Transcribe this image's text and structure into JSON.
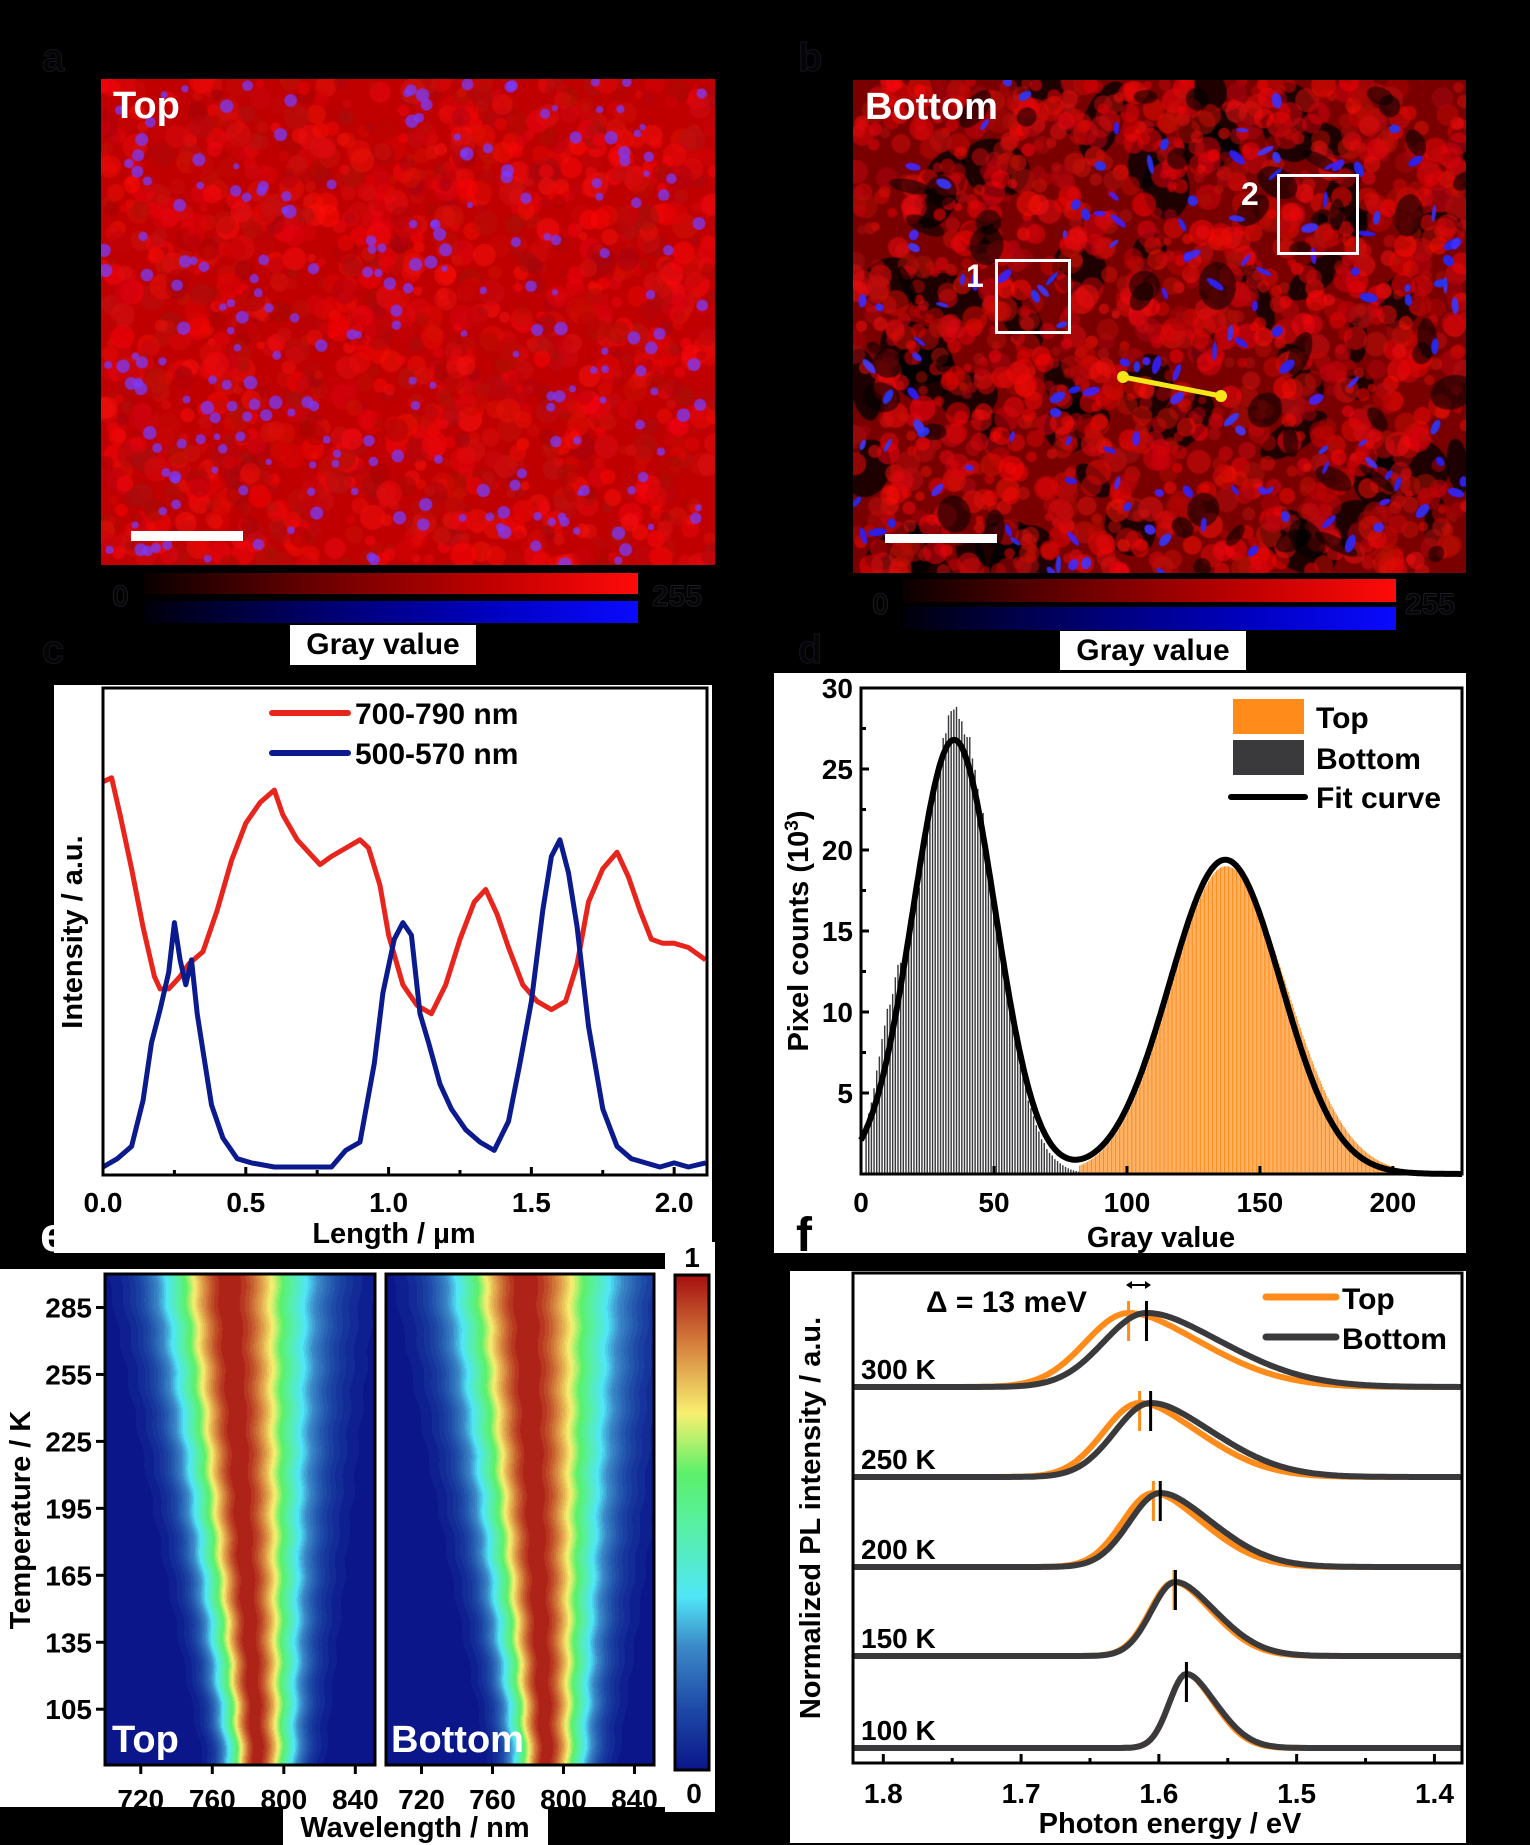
{
  "panels": {
    "a": {
      "letter": "a",
      "image_label": "Top",
      "colorbar": {
        "min_label": "0",
        "max_label": "255",
        "title": "Gray value"
      }
    },
    "b": {
      "letter": "b",
      "image_label": "Bottom",
      "regions": [
        {
          "label": "1"
        },
        {
          "label": "2"
        }
      ],
      "colorbar": {
        "min_label": "0",
        "max_label": "255",
        "title": "Gray value"
      }
    },
    "c": {
      "letter": "c"
    },
    "d": {
      "letter": "d"
    },
    "e": {
      "letter": "e",
      "sub_labels": [
        "Top",
        "Bottom"
      ],
      "colorbar": {
        "max_label": "1",
        "min_label": "0"
      }
    },
    "f": {
      "letter": "f"
    }
  },
  "colors": {
    "red_channel": "#ff0000",
    "blue_channel": "#1010ff",
    "line_red": "#e8251c",
    "line_blue": "#0b1a8c",
    "top_orange": "#ff8c1a",
    "bottom_gray": "#3a3a3d",
    "fit_black": "#000000",
    "scan_line_yellow": "#f5e61a"
  },
  "chart_data": [
    {
      "id": "c",
      "type": "line",
      "title": "",
      "xlabel": "Length / µm",
      "ylabel": "Intensity / a.u.",
      "xlim": [
        0,
        2.115
      ],
      "ylim": [
        0,
        1
      ],
      "xticks": [
        "0.0",
        "0.5",
        "1.0",
        "1.5",
        "2.0"
      ],
      "xtick_values": [
        0,
        0.5,
        1.0,
        1.5,
        2.0
      ],
      "legend_position": "top-center",
      "series": [
        {
          "name": "700-790 nm",
          "color": "#e8251c",
          "x": [
            0.0,
            0.03,
            0.06,
            0.1,
            0.14,
            0.18,
            0.2,
            0.23,
            0.27,
            0.3,
            0.35,
            0.4,
            0.45,
            0.5,
            0.55,
            0.6,
            0.63,
            0.68,
            0.72,
            0.76,
            0.8,
            0.85,
            0.9,
            0.93,
            0.97,
            1.0,
            1.05,
            1.1,
            1.15,
            1.2,
            1.25,
            1.3,
            1.34,
            1.38,
            1.42,
            1.47,
            1.52,
            1.57,
            1.62,
            1.66,
            1.7,
            1.75,
            1.8,
            1.84,
            1.88,
            1.92,
            1.96,
            2.0,
            2.05,
            2.11
          ],
          "y": [
            0.93,
            0.94,
            0.85,
            0.72,
            0.58,
            0.46,
            0.43,
            0.43,
            0.46,
            0.49,
            0.52,
            0.62,
            0.74,
            0.83,
            0.88,
            0.91,
            0.85,
            0.79,
            0.76,
            0.73,
            0.75,
            0.77,
            0.79,
            0.77,
            0.68,
            0.56,
            0.44,
            0.39,
            0.37,
            0.44,
            0.55,
            0.64,
            0.67,
            0.61,
            0.53,
            0.44,
            0.4,
            0.38,
            0.4,
            0.49,
            0.64,
            0.72,
            0.76,
            0.7,
            0.62,
            0.55,
            0.54,
            0.54,
            0.53,
            0.5
          ]
        },
        {
          "name": "500-570 nm",
          "color": "#0b1a8c",
          "x": [
            0.0,
            0.05,
            0.1,
            0.14,
            0.17,
            0.2,
            0.23,
            0.25,
            0.27,
            0.29,
            0.31,
            0.33,
            0.35,
            0.38,
            0.42,
            0.47,
            0.52,
            0.6,
            0.7,
            0.8,
            0.85,
            0.9,
            0.95,
            0.98,
            1.02,
            1.05,
            1.08,
            1.11,
            1.14,
            1.18,
            1.22,
            1.27,
            1.32,
            1.37,
            1.42,
            1.46,
            1.5,
            1.54,
            1.57,
            1.6,
            1.63,
            1.66,
            1.7,
            1.75,
            1.8,
            1.85,
            1.9,
            1.95,
            2.0,
            2.05,
            2.11
          ],
          "y": [
            0.0,
            0.02,
            0.05,
            0.16,
            0.3,
            0.38,
            0.47,
            0.59,
            0.5,
            0.44,
            0.5,
            0.37,
            0.28,
            0.15,
            0.07,
            0.02,
            0.01,
            0.0,
            0.0,
            0.0,
            0.04,
            0.06,
            0.25,
            0.42,
            0.55,
            0.59,
            0.56,
            0.37,
            0.3,
            0.2,
            0.14,
            0.09,
            0.06,
            0.04,
            0.11,
            0.25,
            0.4,
            0.62,
            0.75,
            0.79,
            0.71,
            0.58,
            0.34,
            0.14,
            0.05,
            0.02,
            0.01,
            0.0,
            0.01,
            0.0,
            0.01
          ]
        }
      ]
    },
    {
      "id": "d",
      "type": "bar",
      "title": "",
      "xlabel": "Gray value",
      "ylabel": "Pixel counts (10³)",
      "ylabel_main": "Pixel counts (10",
      "ylabel_sup": "3",
      "ylabel_end": ")",
      "xlim": [
        0,
        226
      ],
      "ylim": [
        0,
        30
      ],
      "xticks": [
        "0",
        "50",
        "100",
        "150",
        "200"
      ],
      "xtick_values": [
        0,
        50,
        100,
        150,
        200
      ],
      "yticks": [
        "5",
        "10",
        "15",
        "20",
        "25",
        "30"
      ],
      "ytick_values": [
        5,
        10,
        15,
        20,
        25,
        30
      ],
      "legend_position": "top-right",
      "series": [
        {
          "name": "Top",
          "color": "#ff8c1a",
          "kind": "histogram",
          "center": 137,
          "sigma": 20.5,
          "peak": 19.0,
          "range": [
            82,
            210
          ]
        },
        {
          "name": "Bottom",
          "color": "#3a3a3d",
          "kind": "histogram",
          "center": 36,
          "sigma": 13.5,
          "peak": 29.0,
          "shoulder": {
            "center": 11,
            "sigma": 6,
            "peak": 5.5
          },
          "range": [
            2,
            82
          ]
        },
        {
          "name": "Fit curve",
          "color": "#000000",
          "kind": "gaussian-fit",
          "components": [
            {
              "center": 35,
              "sigma": 15.5,
              "peak": 26.8
            },
            {
              "center": 137,
              "sigma": 21,
              "peak": 19.4
            }
          ]
        }
      ]
    },
    {
      "id": "e",
      "type": "heatmap",
      "title": "",
      "xlabel": "Wavelength / nm",
      "ylabel": "Temperature / K",
      "xlim": [
        700,
        851
      ],
      "ylim": [
        80,
        300
      ],
      "xticks": [
        "720",
        "760",
        "800",
        "840"
      ],
      "xtick_values": [
        720,
        760,
        800,
        840
      ],
      "yticks": [
        "285",
        "255",
        "225",
        "195",
        "165",
        "135",
        "105"
      ],
      "ytick_values": [
        285,
        255,
        225,
        195,
        165,
        135,
        105
      ],
      "colorbar": {
        "min": 0,
        "max": 1,
        "labels": [
          "1",
          "0"
        ]
      },
      "maps": [
        {
          "name": "Top",
          "peak_wavelength_at_300K": 768,
          "peak_wavelength_at_80K": 785,
          "fwhm_at_300K": 58,
          "fwhm_at_80K": 26
        },
        {
          "name": "Bottom",
          "peak_wavelength_at_300K": 777,
          "peak_wavelength_at_80K": 790,
          "fwhm_at_300K": 64,
          "fwhm_at_80K": 28
        }
      ]
    },
    {
      "id": "f",
      "type": "line",
      "title": "",
      "xlabel": "Photon energy / eV",
      "ylabel": "Normalized PL intensity / a.u.",
      "xlim": [
        1.822,
        1.38
      ],
      "xticks": [
        "1.8",
        "1.7",
        "1.6",
        "1.5",
        "1.4"
      ],
      "xtick_values": [
        1.8,
        1.7,
        1.6,
        1.5,
        1.4
      ],
      "legend_position": "top-right",
      "annotation": "Δ = 13 meV",
      "series_names": [
        "Top",
        "Bottom"
      ],
      "series_colors": {
        "Top": "#ff8c1a",
        "Bottom": "#3a3a3d"
      },
      "temperatures": [
        {
          "label": "300 K",
          "peak_top_eV": 1.622,
          "peak_bottom_eV": 1.609,
          "width_low_eV": 0.05,
          "width_high_eV": 0.085
        },
        {
          "label": "250 K",
          "peak_top_eV": 1.614,
          "peak_bottom_eV": 1.606,
          "width_low_eV": 0.042,
          "width_high_eV": 0.07
        },
        {
          "label": "200 K",
          "peak_top_eV": 1.604,
          "peak_bottom_eV": 1.599,
          "width_low_eV": 0.036,
          "width_high_eV": 0.058
        },
        {
          "label": "150 K",
          "peak_top_eV": 1.589,
          "peak_bottom_eV": 1.588,
          "width_low_eV": 0.028,
          "width_high_eV": 0.045
        },
        {
          "label": "100 K",
          "peak_top_eV": 1.58,
          "peak_bottom_eV": 1.58,
          "width_low_eV": 0.02,
          "width_high_eV": 0.033
        }
      ]
    }
  ]
}
